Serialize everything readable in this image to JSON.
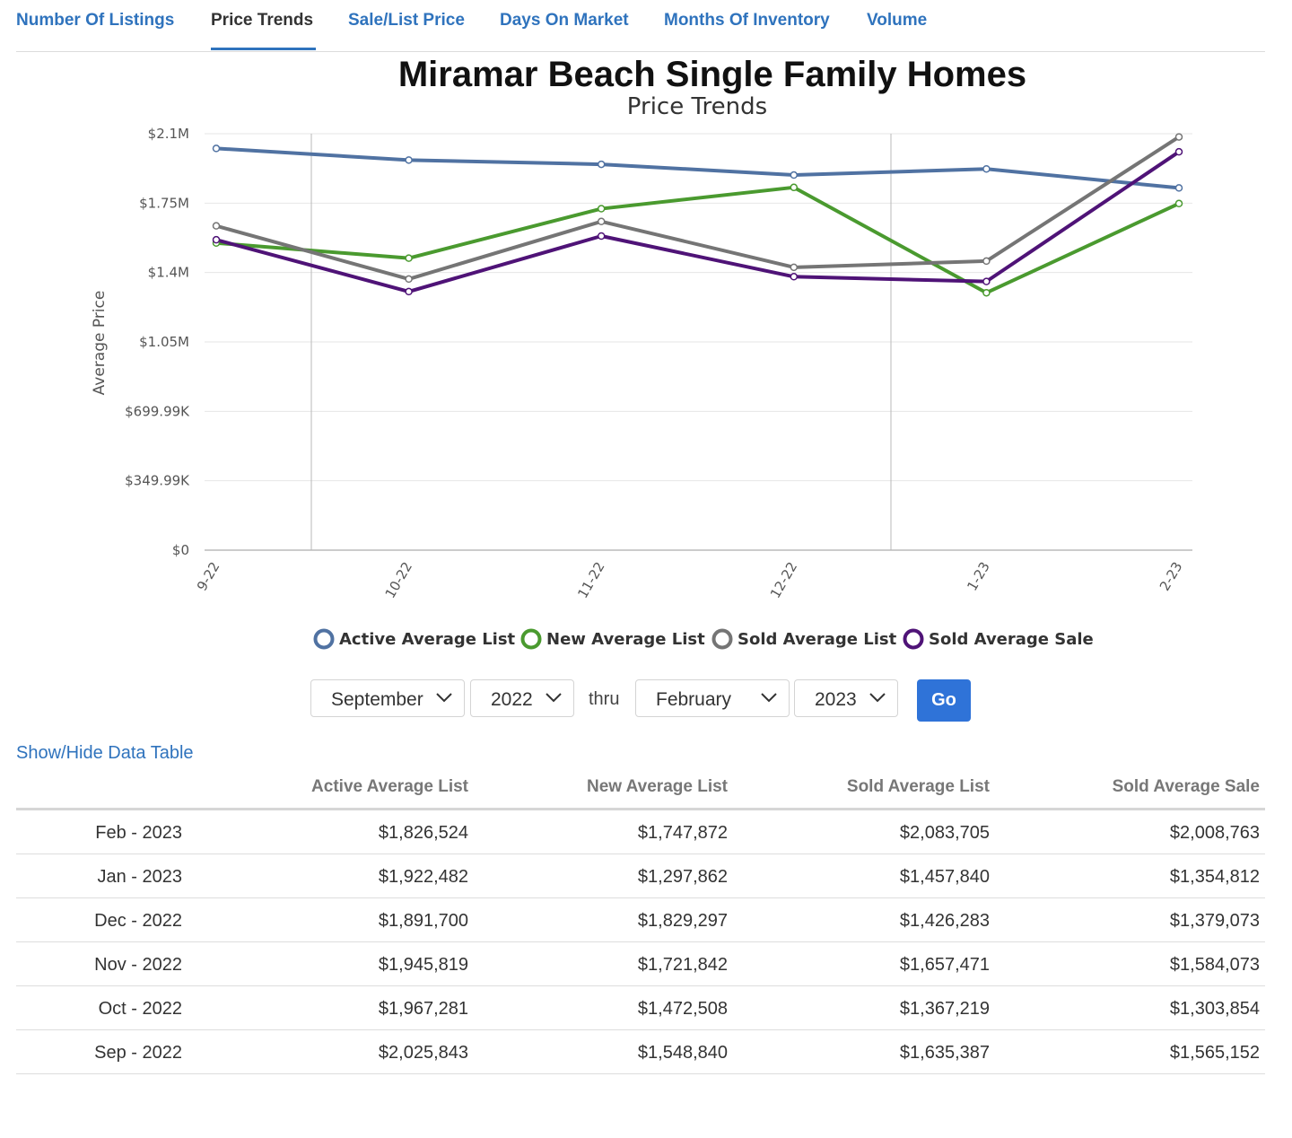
{
  "tabs": [
    {
      "label": "Number Of Listings",
      "active": false
    },
    {
      "label": "Price Trends",
      "active": true
    },
    {
      "label": "Sale/List Price",
      "active": false
    },
    {
      "label": "Days On Market",
      "active": false
    },
    {
      "label": "Months Of Inventory",
      "active": false
    },
    {
      "label": "Volume",
      "active": false
    }
  ],
  "chart_data": {
    "type": "line",
    "title": "Miramar Beach Single Family Homes",
    "subtitle": "Price Trends",
    "ylabel": "Average Price",
    "xlabel": "",
    "ylim": [
      0,
      2100000
    ],
    "yticks": [
      {
        "value": 0,
        "label": "$0"
      },
      {
        "value": 349990,
        "label": "$349.99K"
      },
      {
        "value": 699990,
        "label": "$699.99K"
      },
      {
        "value": 1050000,
        "label": "$1.05M"
      },
      {
        "value": 1400000,
        "label": "$1.4M"
      },
      {
        "value": 1750000,
        "label": "$1.75M"
      },
      {
        "value": 2100000,
        "label": "$2.1M"
      }
    ],
    "categories": [
      "9-22",
      "10-22",
      "11-22",
      "12-22",
      "1-23",
      "2-23"
    ],
    "legend_position": "bottom",
    "grid": true,
    "series": [
      {
        "name": "Active Average List",
        "color": "#5072a2",
        "values": [
          2025843,
          1967281,
          1945819,
          1891700,
          1922482,
          1826524
        ]
      },
      {
        "name": "New Average List",
        "color": "#4a9a2f",
        "values": [
          1548840,
          1472508,
          1721842,
          1829297,
          1297862,
          1747872
        ]
      },
      {
        "name": "Sold Average List",
        "color": "#757575",
        "values": [
          1635387,
          1367219,
          1657471,
          1426283,
          1457840,
          2083705
        ]
      },
      {
        "name": "Sold Average Sale",
        "color": "#4f1377",
        "values": [
          1565152,
          1303854,
          1584073,
          1379073,
          1354812,
          2008763
        ]
      }
    ]
  },
  "controls": {
    "start_month": "September",
    "start_year": "2022",
    "thru_label": "thru",
    "end_month": "February",
    "end_year": "2023",
    "go_label": "Go"
  },
  "table_toggle_label": "Show/Hide Data Table",
  "table": {
    "headers": [
      "",
      "Active Average List",
      "New Average List",
      "Sold Average List",
      "Sold Average Sale"
    ],
    "rows": [
      [
        "Feb - 2023",
        "$1,826,524",
        "$1,747,872",
        "$2,083,705",
        "$2,008,763"
      ],
      [
        "Jan - 2023",
        "$1,922,482",
        "$1,297,862",
        "$1,457,840",
        "$1,354,812"
      ],
      [
        "Dec - 2022",
        "$1,891,700",
        "$1,829,297",
        "$1,426,283",
        "$1,379,073"
      ],
      [
        "Nov - 2022",
        "$1,945,819",
        "$1,721,842",
        "$1,657,471",
        "$1,584,073"
      ],
      [
        "Oct - 2022",
        "$1,967,281",
        "$1,472,508",
        "$1,367,219",
        "$1,303,854"
      ],
      [
        "Sep - 2022",
        "$2,025,843",
        "$1,548,840",
        "$1,635,387",
        "$1,565,152"
      ]
    ]
  }
}
